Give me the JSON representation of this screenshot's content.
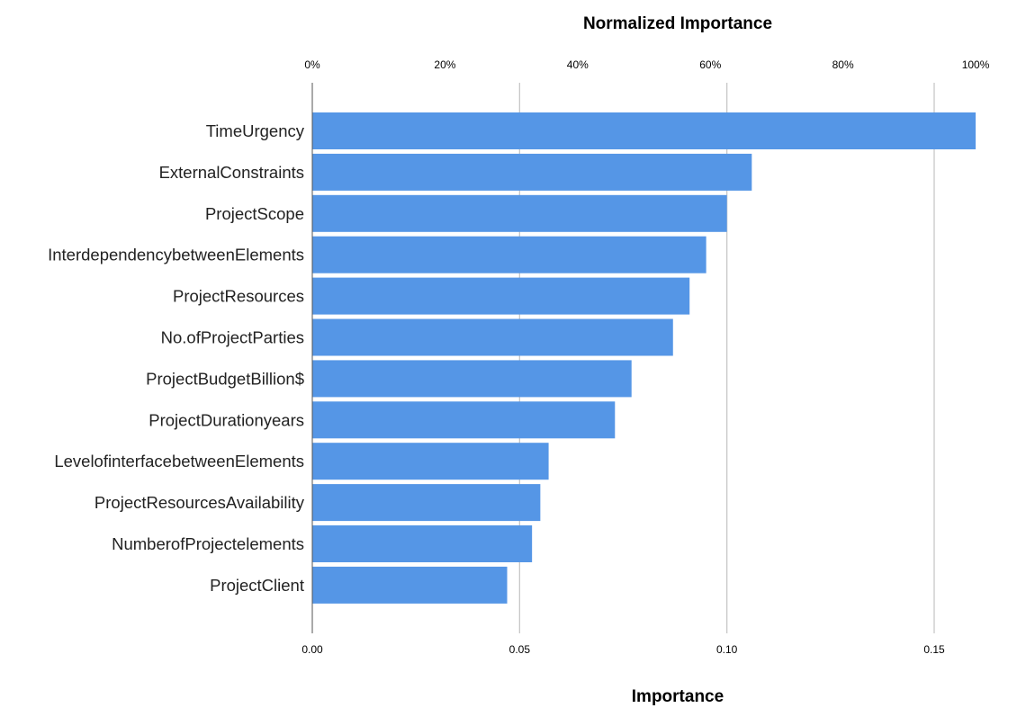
{
  "chart_data": {
    "type": "bar",
    "orientation": "horizontal",
    "top_axis_title": "Normalized Importance",
    "bottom_axis_title": "Importance",
    "top_ticks": [
      "0%",
      "20%",
      "40%",
      "60%",
      "80%",
      "100%"
    ],
    "top_tick_values": [
      0,
      0.2,
      0.4,
      0.6,
      0.8,
      1.0
    ],
    "bottom_ticks": [
      "0.00",
      "0.05",
      "0.10",
      "0.15"
    ],
    "bottom_tick_values": [
      0,
      0.05,
      0.1,
      0.15
    ],
    "xlim": [
      0,
      0.175
    ],
    "grid": true,
    "categories": [
      "TimeUrgency",
      "ExternalConstraints",
      "ProjectScope",
      "InterdependencybetweenElements",
      "ProjectResources",
      "No.ofProjectParties",
      "ProjectBudgetBillion$",
      "ProjectDurationyears",
      "LevelofinterfacebetweenElements",
      "ProjectResourcesAvailability",
      "NumberofProjectelements",
      "ProjectClient"
    ],
    "values": [
      0.16,
      0.106,
      0.1,
      0.095,
      0.091,
      0.087,
      0.077,
      0.073,
      0.057,
      0.055,
      0.053,
      0.047
    ],
    "normalized_values": [
      1.0,
      0.665,
      0.625,
      0.595,
      0.57,
      0.545,
      0.48,
      0.46,
      0.355,
      0.345,
      0.335,
      0.295
    ],
    "bar_color": "#5596e6",
    "grid_color": "#c8c8c8",
    "axis_color": "#555555"
  }
}
